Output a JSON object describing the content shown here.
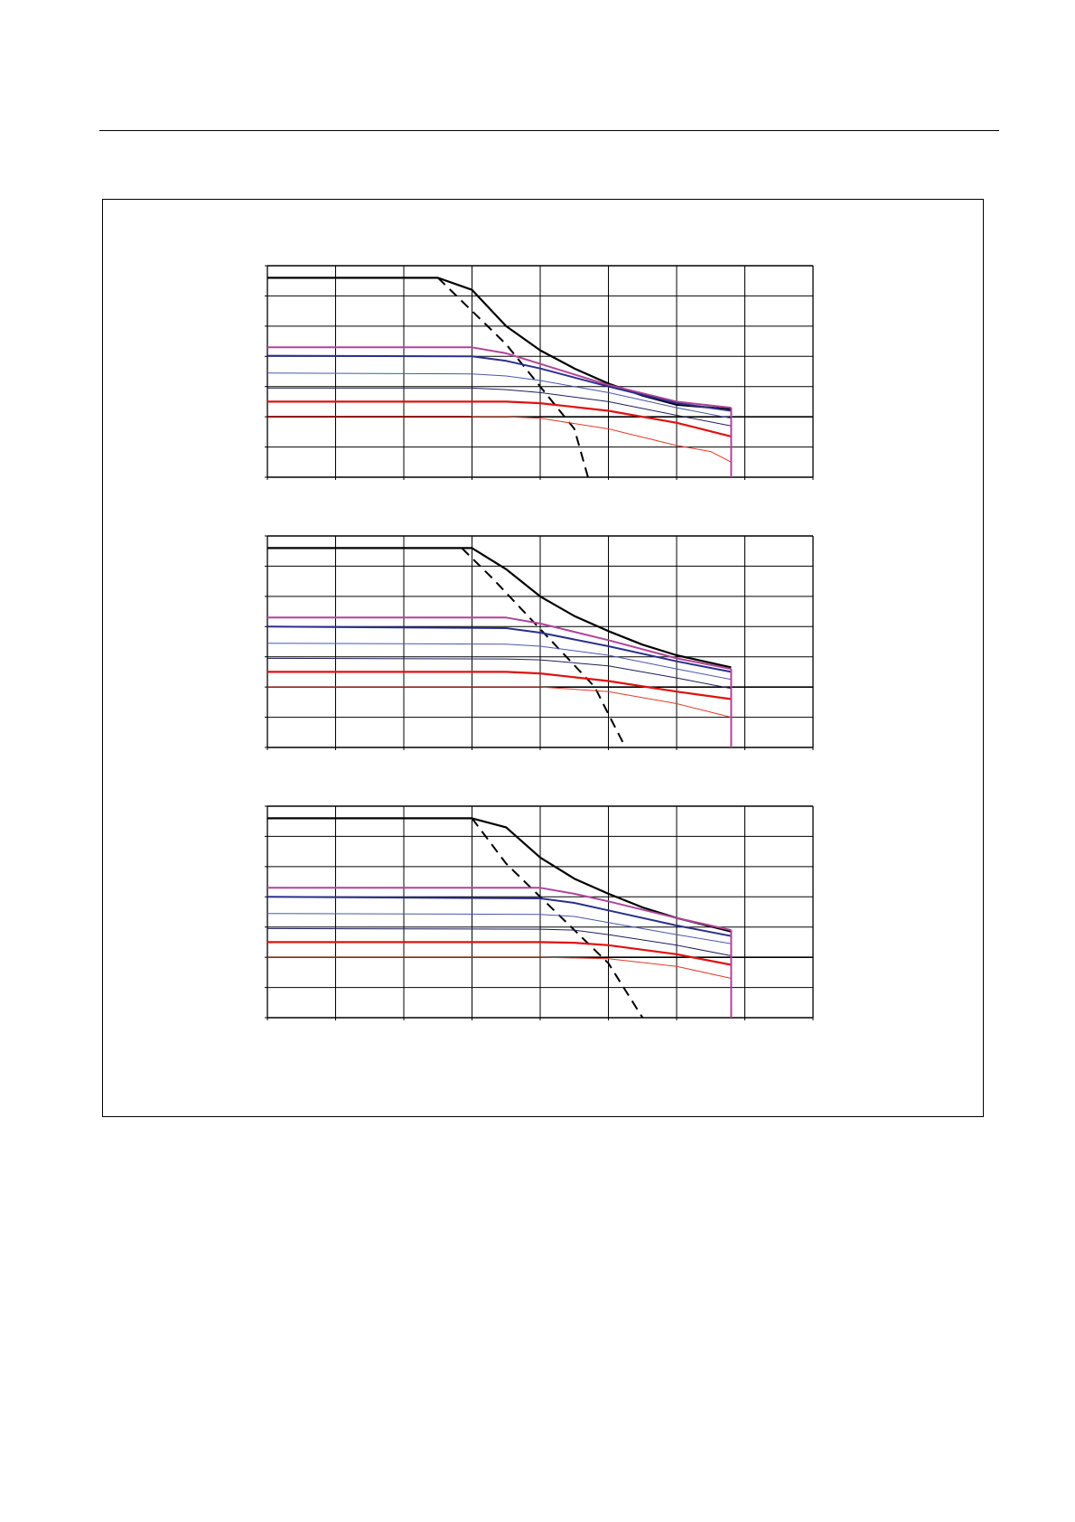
{
  "colors": {
    "black": "#000000",
    "magenta": "#b0449a",
    "blue": "#2b2f8c",
    "blue_thin": "#4a57a8",
    "navy": "#1c1f5e",
    "red": "#e01010",
    "red_thin": "#e23a2a",
    "dark_red": "#8b0000"
  },
  "chart_data": [
    {
      "type": "line",
      "x_divisions": 8,
      "y_divisions": 7,
      "grid": true,
      "emphasized_y_gridline": 2,
      "xlim": [
        0,
        8
      ],
      "ylim": [
        0,
        7
      ],
      "series": [
        {
          "style": "black-thick",
          "x": [
            0,
            2.5,
            3.0,
            3.5,
            4.0,
            4.5,
            5.0,
            5.5,
            6.0,
            6.8
          ],
          "y": [
            6.6,
            6.6,
            6.2,
            5.0,
            4.2,
            3.6,
            3.1,
            2.7,
            2.4,
            2.25
          ]
        },
        {
          "style": "black-dashed",
          "x": [
            2.5,
            3.0,
            3.5,
            4.0,
            4.5,
            4.7
          ],
          "y": [
            6.6,
            5.5,
            4.4,
            3.0,
            1.6,
            0.0
          ]
        },
        {
          "style": "magenta",
          "x": [
            0,
            3.0,
            3.5,
            4.0,
            5.0,
            6.0,
            6.8
          ],
          "y": [
            4.3,
            4.3,
            4.1,
            3.75,
            3.05,
            2.5,
            2.3
          ]
        },
        {
          "style": "blue",
          "x": [
            0,
            3.0,
            3.5,
            4.0,
            5.0,
            6.0,
            6.8
          ],
          "y": [
            4.02,
            4.0,
            3.85,
            3.6,
            3.0,
            2.45,
            2.2
          ]
        },
        {
          "style": "blue-thin",
          "x": [
            0,
            3.0,
            3.5,
            4.0,
            5.0,
            6.0,
            6.8
          ],
          "y": [
            3.45,
            3.42,
            3.35,
            3.2,
            2.8,
            2.3,
            1.95
          ]
        },
        {
          "style": "navy-thin",
          "x": [
            0,
            3.0,
            3.5,
            4.0,
            5.0,
            6.0,
            6.8
          ],
          "y": [
            2.95,
            2.95,
            2.9,
            2.8,
            2.5,
            2.05,
            1.7
          ]
        },
        {
          "style": "red-thick",
          "x": [
            0,
            3.5,
            4.0,
            5.0,
            6.0,
            6.8
          ],
          "y": [
            2.5,
            2.5,
            2.45,
            2.2,
            1.8,
            1.35
          ]
        },
        {
          "style": "red-thin",
          "x": [
            0,
            3.5,
            4.0,
            5.0,
            6.0,
            6.5,
            6.8
          ],
          "y": [
            2.0,
            2.0,
            1.95,
            1.6,
            1.05,
            0.85,
            0.5
          ]
        },
        {
          "style": "dark-red",
          "x": [
            0,
            3.0
          ],
          "y": [
            2.0,
            2.0
          ]
        },
        {
          "style": "magenta",
          "x": [
            6.8,
            6.8
          ],
          "y": [
            2.3,
            0.0
          ]
        }
      ]
    },
    {
      "type": "line",
      "x_divisions": 8,
      "y_divisions": 7,
      "grid": true,
      "emphasized_y_gridline": 2,
      "xlim": [
        0,
        8
      ],
      "ylim": [
        0,
        7
      ],
      "series": [
        {
          "style": "black-thick",
          "x": [
            0,
            2.85,
            3.0,
            3.5,
            4.0,
            4.5,
            5.0,
            5.5,
            6.0,
            6.8
          ],
          "y": [
            6.6,
            6.6,
            6.6,
            5.9,
            5.0,
            4.35,
            3.85,
            3.4,
            3.05,
            2.65
          ]
        },
        {
          "style": "black-dashed",
          "x": [
            2.85,
            3.3,
            3.8,
            4.3,
            4.8,
            5.0,
            5.25
          ],
          "y": [
            6.6,
            5.6,
            4.4,
            3.2,
            2.0,
            1.1,
            0.0
          ]
        },
        {
          "style": "magenta",
          "x": [
            0,
            3.5,
            4.0,
            5.0,
            6.0,
            6.8
          ],
          "y": [
            4.3,
            4.3,
            4.1,
            3.55,
            2.95,
            2.6
          ]
        },
        {
          "style": "blue",
          "x": [
            0,
            3.5,
            4.0,
            5.0,
            6.0,
            6.8
          ],
          "y": [
            4.0,
            3.95,
            3.8,
            3.35,
            2.85,
            2.5
          ]
        },
        {
          "style": "blue-thin",
          "x": [
            0,
            3.5,
            4.0,
            5.0,
            6.0,
            6.8
          ],
          "y": [
            3.45,
            3.42,
            3.35,
            3.05,
            2.6,
            2.25
          ]
        },
        {
          "style": "navy-thin",
          "x": [
            0,
            3.5,
            4.0,
            5.0,
            6.0,
            6.8
          ],
          "y": [
            2.95,
            2.93,
            2.9,
            2.7,
            2.3,
            1.95
          ]
        },
        {
          "style": "red-thick",
          "x": [
            0,
            3.5,
            4.0,
            5.0,
            6.0,
            6.8
          ],
          "y": [
            2.5,
            2.5,
            2.45,
            2.2,
            1.85,
            1.6
          ]
        },
        {
          "style": "red-thin",
          "x": [
            0,
            4.0,
            5.0,
            6.0,
            6.8
          ],
          "y": [
            2.0,
            2.0,
            1.85,
            1.45,
            1.0
          ]
        },
        {
          "style": "magenta",
          "x": [
            6.8,
            6.8
          ],
          "y": [
            2.6,
            0.0
          ]
        }
      ]
    },
    {
      "type": "line",
      "x_divisions": 8,
      "y_divisions": 7,
      "grid": true,
      "emphasized_y_gridline": 2,
      "xlim": [
        0,
        8
      ],
      "ylim": [
        0,
        7
      ],
      "series": [
        {
          "style": "black-thick",
          "x": [
            0,
            3.0,
            3.5,
            4.0,
            4.5,
            5.0,
            5.5,
            6.0,
            6.8
          ],
          "y": [
            6.6,
            6.6,
            6.3,
            5.3,
            4.6,
            4.1,
            3.65,
            3.3,
            2.85
          ]
        },
        {
          "style": "black-dashed",
          "x": [
            3.0,
            3.5,
            4.0,
            4.5,
            5.0,
            5.5
          ],
          "y": [
            6.6,
            5.1,
            4.0,
            2.9,
            1.8,
            0.0
          ]
        },
        {
          "style": "magenta",
          "x": [
            0,
            4.0,
            4.5,
            5.0,
            6.0,
            6.8
          ],
          "y": [
            4.3,
            4.3,
            4.1,
            3.85,
            3.3,
            2.9
          ]
        },
        {
          "style": "blue",
          "x": [
            0,
            4.0,
            4.5,
            5.0,
            6.0,
            6.8
          ],
          "y": [
            4.0,
            3.95,
            3.8,
            3.55,
            3.05,
            2.7
          ]
        },
        {
          "style": "blue-thin",
          "x": [
            0,
            4.0,
            4.5,
            5.0,
            6.0,
            6.8
          ],
          "y": [
            3.45,
            3.42,
            3.35,
            3.15,
            2.75,
            2.45
          ]
        },
        {
          "style": "navy-thin",
          "x": [
            0,
            4.0,
            4.5,
            5.0,
            6.0,
            6.8
          ],
          "y": [
            2.95,
            2.93,
            2.9,
            2.75,
            2.4,
            2.05
          ]
        },
        {
          "style": "red-thick",
          "x": [
            0,
            4.0,
            4.5,
            5.0,
            6.0,
            6.8
          ],
          "y": [
            2.5,
            2.5,
            2.48,
            2.4,
            2.1,
            1.75
          ]
        },
        {
          "style": "red-thin",
          "x": [
            0,
            4.0,
            5.0,
            6.0,
            6.8
          ],
          "y": [
            2.0,
            2.0,
            1.95,
            1.7,
            1.3
          ]
        },
        {
          "style": "magenta",
          "x": [
            6.8,
            6.8
          ],
          "y": [
            2.9,
            0.0
          ]
        }
      ]
    }
  ]
}
